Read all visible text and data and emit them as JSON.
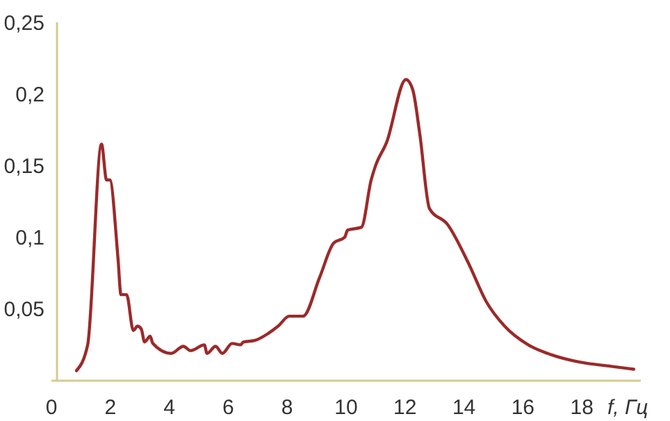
{
  "chart_data": {
    "type": "line",
    "xlabel": "f, Гц",
    "xlim": [
      0,
      20
    ],
    "ylim": [
      0,
      0.25
    ],
    "xticks": [
      0,
      2,
      4,
      6,
      8,
      10,
      12,
      14,
      16,
      18
    ],
    "yticks": [
      {
        "value": 0.05,
        "label": "0,05"
      },
      {
        "value": 0.1,
        "label": "0,1"
      },
      {
        "value": 0.15,
        "label": "0,15"
      },
      {
        "value": 0.2,
        "label": "0,2"
      },
      {
        "value": 0.25,
        "label": "0,25"
      }
    ],
    "grid": false,
    "series": [
      {
        "color": "#9b2a2a",
        "x": [
          0.85,
          1.23,
          1.7,
          1.87,
          1.98,
          2.26,
          2.36,
          2.55,
          2.78,
          2.92,
          3.05,
          3.16,
          3.35,
          3.44,
          4.06,
          4.48,
          4.72,
          5.19,
          5.28,
          5.57,
          5.8,
          6.13,
          6.42,
          6.51,
          6.89,
          7.36,
          7.69,
          8.07,
          8.54,
          9.1,
          9.58,
          9.95,
          10.05,
          10.52,
          10.85,
          11.0,
          11.37,
          12.03,
          12.26,
          12.5,
          12.83,
          13.44,
          14.15,
          14.76,
          15.38,
          16.18,
          16.98,
          17.92,
          19.0,
          19.76
        ],
        "values": [
          0.007,
          0.025,
          0.165,
          0.14,
          0.14,
          0.085,
          0.06,
          0.06,
          0.035,
          0.038,
          0.036,
          0.027,
          0.031,
          0.026,
          0.019,
          0.024,
          0.021,
          0.025,
          0.019,
          0.024,
          0.019,
          0.026,
          0.025,
          0.027,
          0.028,
          0.033,
          0.038,
          0.045,
          0.045,
          0.072,
          0.096,
          0.1,
          0.105,
          0.107,
          0.14,
          0.15,
          0.166,
          0.21,
          0.203,
          0.172,
          0.12,
          0.109,
          0.082,
          0.055,
          0.038,
          0.025,
          0.018,
          0.013,
          0.01,
          0.008
        ]
      }
    ]
  }
}
